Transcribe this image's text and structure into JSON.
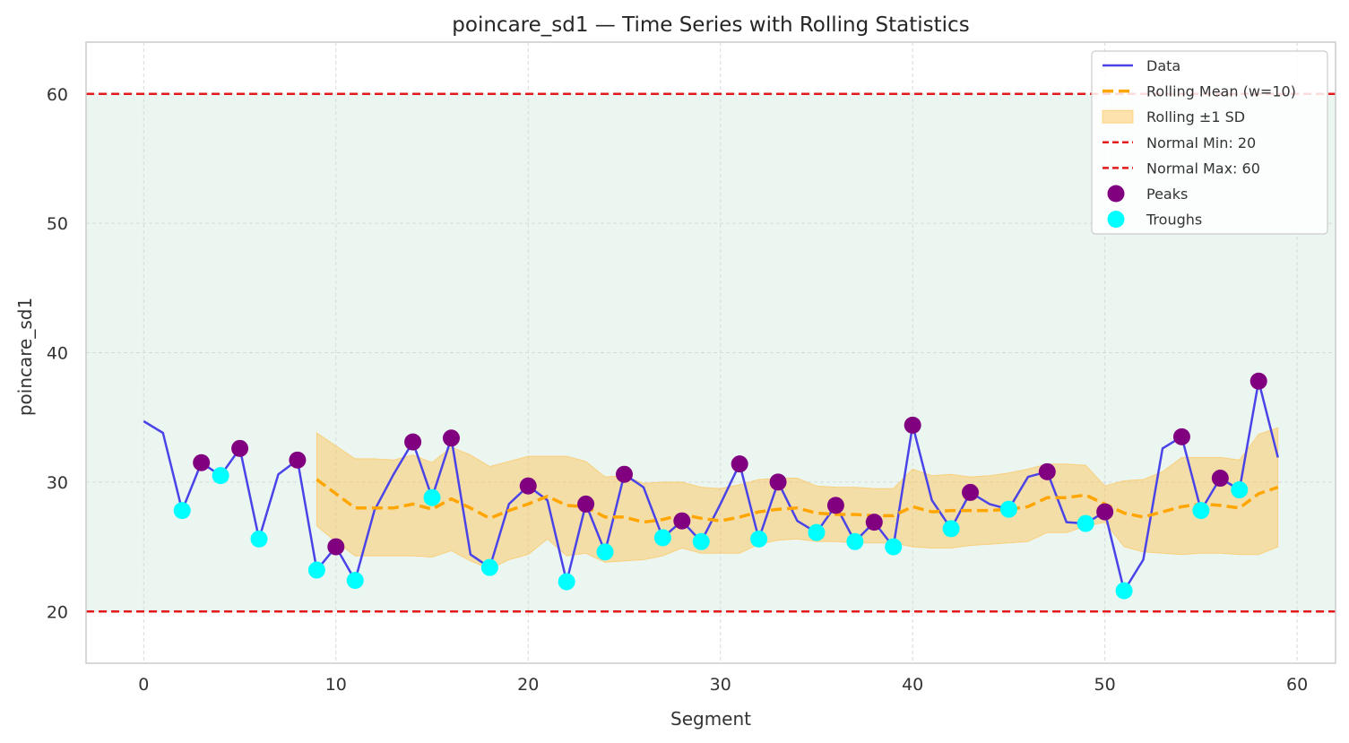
{
  "chart_data": {
    "type": "line",
    "title": "poincare_sd1 — Time Series with Rolling Statistics",
    "xlabel": "Segment",
    "ylabel": "poincare_sd1",
    "xlim": [
      -3,
      62
    ],
    "ylim": [
      16,
      64
    ],
    "xticks": [
      0,
      10,
      20,
      30,
      40,
      50,
      60
    ],
    "yticks": [
      20,
      30,
      40,
      50,
      60
    ],
    "grid": true,
    "legend_position": "top-right",
    "normal_range": {
      "min": 20,
      "max": 60
    },
    "series": [
      {
        "name": "Data",
        "color": "#4a44e8",
        "x": [
          0,
          1,
          2,
          3,
          4,
          5,
          6,
          7,
          8,
          9,
          10,
          11,
          12,
          13,
          14,
          15,
          16,
          17,
          18,
          19,
          20,
          21,
          22,
          23,
          24,
          25,
          26,
          27,
          28,
          29,
          30,
          31,
          32,
          33,
          34,
          35,
          36,
          37,
          38,
          39,
          40,
          41,
          42,
          43,
          44,
          45,
          46,
          47,
          48,
          49,
          50,
          51,
          52,
          53,
          54,
          55,
          56,
          57,
          58,
          59
        ],
        "values": [
          34.7,
          33.8,
          27.8,
          31.5,
          30.5,
          32.6,
          25.6,
          30.6,
          31.7,
          23.2,
          25.0,
          22.4,
          27.8,
          30.6,
          33.1,
          28.8,
          33.4,
          24.4,
          23.4,
          28.3,
          29.7,
          28.6,
          22.3,
          28.3,
          24.6,
          30.6,
          29.6,
          25.7,
          27.0,
          25.4,
          28.3,
          31.4,
          25.6,
          30.0,
          27.0,
          26.1,
          28.2,
          25.4,
          26.9,
          25.0,
          34.4,
          28.6,
          26.4,
          29.2,
          28.3,
          27.9,
          30.4,
          30.8,
          26.9,
          26.8,
          27.7,
          21.6,
          24.0,
          32.6,
          33.5,
          27.8,
          30.3,
          29.4,
          37.8,
          31.9
        ]
      },
      {
        "name": "Rolling Mean (w=10)",
        "color": "#ffa500",
        "x": [
          9,
          10,
          11,
          12,
          13,
          14,
          15,
          16,
          17,
          18,
          19,
          20,
          21,
          22,
          23,
          24,
          25,
          26,
          27,
          28,
          29,
          30,
          31,
          32,
          33,
          34,
          35,
          36,
          37,
          38,
          39,
          40,
          41,
          42,
          43,
          44,
          45,
          46,
          47,
          48,
          49,
          50,
          51,
          52,
          53,
          54,
          55,
          56,
          57,
          58,
          59
        ],
        "values": [
          30.2,
          29.1,
          28.0,
          28.0,
          28.0,
          28.3,
          27.9,
          28.7,
          28.0,
          27.2,
          27.8,
          28.3,
          28.9,
          28.2,
          28.1,
          27.3,
          27.3,
          26.9,
          27.1,
          27.5,
          27.2,
          27.0,
          27.3,
          27.7,
          27.9,
          28.0,
          27.6,
          27.5,
          27.5,
          27.4,
          27.4,
          28.1,
          27.7,
          27.8,
          27.8,
          27.8,
          27.9,
          28.1,
          28.8,
          28.8,
          29.0,
          28.3,
          27.6,
          27.3,
          27.7,
          28.1,
          28.3,
          28.2,
          28.0,
          29.1,
          29.6
        ]
      },
      {
        "name": "Rolling ±1 SD",
        "color": "#ffc04d",
        "x": [
          9,
          10,
          11,
          12,
          13,
          14,
          15,
          16,
          17,
          18,
          19,
          20,
          21,
          22,
          23,
          24,
          25,
          26,
          27,
          28,
          29,
          30,
          31,
          32,
          33,
          34,
          35,
          36,
          37,
          38,
          39,
          40,
          41,
          42,
          43,
          44,
          45,
          46,
          47,
          48,
          49,
          50,
          51,
          52,
          53,
          54,
          55,
          56,
          57,
          58,
          59
        ],
        "upper": [
          33.8,
          32.8,
          31.8,
          31.8,
          31.7,
          32.1,
          31.5,
          32.7,
          32.1,
          31.2,
          31.6,
          32.0,
          32.0,
          32.0,
          31.6,
          30.4,
          30.5,
          29.9,
          30.0,
          30.0,
          29.6,
          29.5,
          29.8,
          30.2,
          30.3,
          30.3,
          29.7,
          29.6,
          29.6,
          29.5,
          29.5,
          31.0,
          30.5,
          30.6,
          30.4,
          30.5,
          30.7,
          31.0,
          31.4,
          31.4,
          31.3,
          29.7,
          30.1,
          30.2,
          30.8,
          31.9,
          31.9,
          31.9,
          31.7,
          33.7,
          34.2
        ],
        "lower": [
          26.6,
          25.4,
          24.3,
          24.3,
          24.3,
          24.3,
          24.2,
          24.7,
          23.9,
          23.3,
          24.0,
          24.4,
          25.6,
          24.3,
          24.5,
          23.8,
          23.9,
          24.0,
          24.3,
          24.9,
          24.5,
          24.5,
          24.5,
          25.2,
          25.5,
          25.6,
          25.4,
          25.4,
          25.3,
          25.3,
          25.3,
          25.0,
          24.9,
          24.9,
          25.1,
          25.2,
          25.3,
          25.4,
          26.1,
          26.1,
          26.6,
          26.9,
          25.0,
          24.6,
          24.5,
          24.4,
          24.5,
          24.5,
          24.4,
          24.4,
          25.0
        ]
      },
      {
        "name": "Normal Min: 20",
        "color": "#e31a1c",
        "y": 20
      },
      {
        "name": "Normal Max: 60",
        "color": "#e31a1c",
        "y": 60
      },
      {
        "name": "Peaks",
        "color": "#800080",
        "x": [
          3,
          5,
          8,
          10,
          14,
          16,
          20,
          23,
          25,
          28,
          31,
          33,
          36,
          38,
          40,
          43,
          47,
          50,
          54,
          56,
          58
        ],
        "values": [
          31.5,
          32.6,
          31.7,
          25.0,
          33.1,
          33.4,
          29.7,
          28.3,
          30.6,
          27.0,
          31.4,
          30.0,
          28.2,
          26.9,
          34.4,
          29.2,
          30.8,
          27.7,
          33.5,
          30.3,
          37.8
        ]
      },
      {
        "name": "Troughs",
        "color": "#00ffff",
        "x": [
          2,
          4,
          6,
          9,
          11,
          15,
          18,
          22,
          24,
          27,
          29,
          32,
          35,
          37,
          39,
          42,
          45,
          49,
          51,
          55,
          57
        ],
        "values": [
          27.8,
          30.5,
          25.6,
          23.2,
          22.4,
          28.8,
          23.4,
          22.3,
          24.6,
          25.7,
          25.4,
          25.6,
          26.1,
          25.4,
          25.0,
          26.4,
          27.9,
          26.8,
          21.6,
          27.8,
          29.4
        ]
      }
    ]
  }
}
